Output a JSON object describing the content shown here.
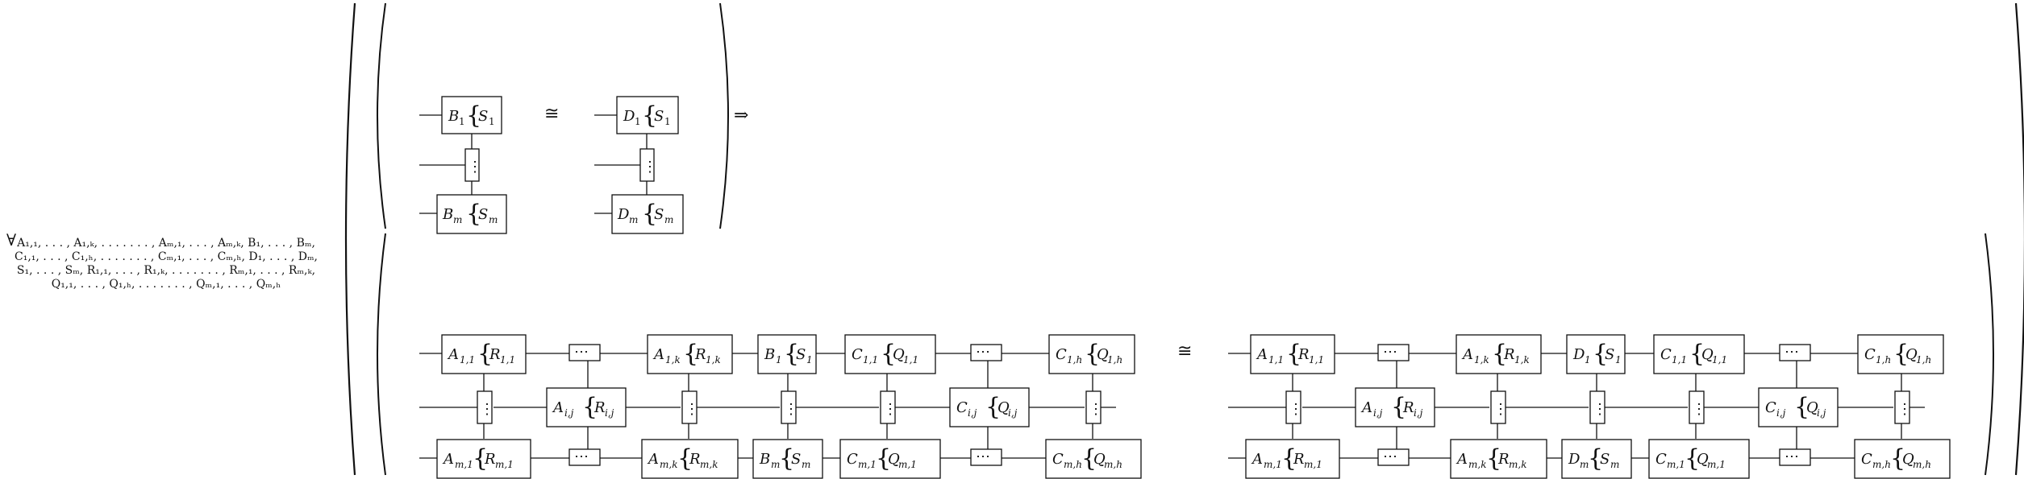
{
  "quantifier": {
    "symbol": "∀",
    "lines": [
      "A₁,₁, . . . , A₁,ₖ, . . . . . . . , Aₘ,₁, . . . , Aₘ,ₖ, B₁, . . . , Bₘ,",
      "C₁,₁, . . . , C₁,ₕ, . . . . . . . , Cₘ,₁, . . . , Cₘ,ₕ, D₁, . . . , Dₘ,",
      "S₁, . . . , Sₘ, R₁,₁, . . . , R₁,ₖ, . . . . . . . , Rₘ,₁, . . . , Rₘ,ₖ,",
      "Q₁,₁, . . . , Q₁,ₕ, . . . . . . . , Qₘ,₁, . . . , Qₘ,ₕ"
    ]
  },
  "symbols": {
    "iso": "≅",
    "implies": "⇒",
    "vdots": "⋮",
    "cdots": "⋯",
    "brace": "{"
  },
  "premise": {
    "left": {
      "top_box": "B",
      "top_sub": "1",
      "top_sys": "S",
      "top_sys_sub": "1",
      "bot_box": "B",
      "bot_sub": "m",
      "bot_sys": "S",
      "bot_sys_sub": "m"
    },
    "right": {
      "top_box": "D",
      "top_sub": "1",
      "top_sys": "S",
      "top_sys_sub": "1",
      "bot_box": "D",
      "bot_sub": "m",
      "bot_sys": "S",
      "bot_sys_sub": "m"
    }
  },
  "conclusion": {
    "left": {
      "a1": [
        "A",
        "1,1",
        "R",
        "1,1"
      ],
      "aij": [
        "A",
        "i,j",
        "R",
        "i,j"
      ],
      "a1k": [
        "A",
        "1,k",
        "R",
        "1,k"
      ],
      "am1": [
        "A",
        "m,1",
        "R",
        "m,1"
      ],
      "amk": [
        "A",
        "m,k",
        "R",
        "m,k"
      ],
      "mid_top": [
        "B",
        "1",
        "S",
        "1"
      ],
      "mid_bot": [
        "B",
        "m",
        "S",
        "m"
      ],
      "c1": [
        "C",
        "1,1",
        "Q",
        "1,1"
      ],
      "cij": [
        "C",
        "i,j",
        "Q",
        "i,j"
      ],
      "c1h": [
        "C",
        "1,h",
        "Q",
        "1,h"
      ],
      "cm1": [
        "C",
        "m,1",
        "Q",
        "m,1"
      ],
      "cmh": [
        "C",
        "m,h",
        "Q",
        "m,h"
      ]
    },
    "right": {
      "a1": [
        "A",
        "1,1",
        "R",
        "1,1"
      ],
      "aij": [
        "A",
        "i,j",
        "R",
        "i,j"
      ],
      "a1k": [
        "A",
        "1,k",
        "R",
        "1,k"
      ],
      "am1": [
        "A",
        "m,1",
        "R",
        "m,1"
      ],
      "amk": [
        "A",
        "m,k",
        "R",
        "m,k"
      ],
      "mid_top": [
        "D",
        "1",
        "S",
        "1"
      ],
      "mid_bot": [
        "D",
        "m",
        "S",
        "m"
      ],
      "c1": [
        "C",
        "1,1",
        "Q",
        "1,1"
      ],
      "cij": [
        "C",
        "i,j",
        "Q",
        "i,j"
      ],
      "c1h": [
        "C",
        "1,h",
        "Q",
        "1,h"
      ],
      "cm1": [
        "C",
        "m,1",
        "Q",
        "m,1"
      ],
      "cmh": [
        "C",
        "m,h",
        "Q",
        "m,h"
      ]
    }
  }
}
